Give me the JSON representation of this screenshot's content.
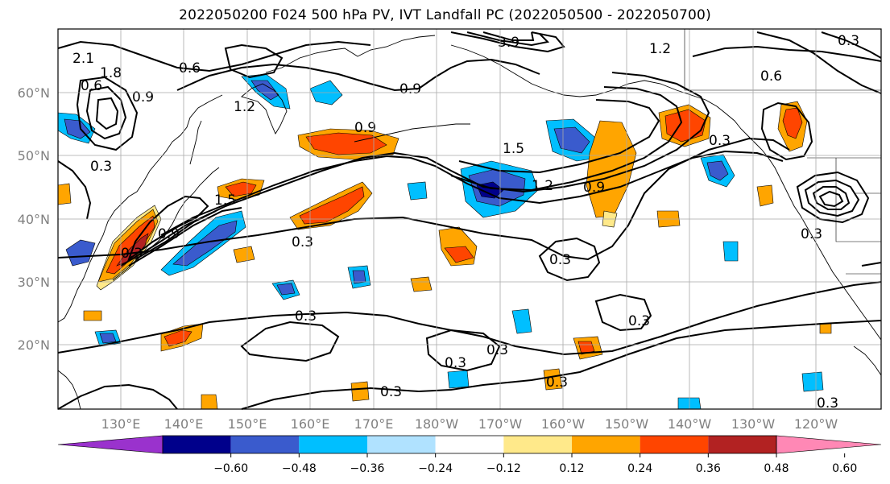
{
  "title": "2022050200 F024 500 hPa PV, IVT Landfall PC (2022050500 - 2022050700)",
  "axes": {
    "lat_labels": [
      "60°N",
      "50°N",
      "40°N",
      "30°N",
      "20°N"
    ],
    "lon_labels": [
      "130°E",
      "140°E",
      "150°E",
      "160°E",
      "170°E",
      "180°W",
      "170°W",
      "160°W",
      "150°W",
      "140°W",
      "130°W",
      "120°W"
    ],
    "tick_color": "#808080",
    "grid": true
  },
  "colorbar": {
    "ticks": [
      "−0.60",
      "−0.48",
      "−0.36",
      "−0.24",
      "−0.12",
      "0.12",
      "0.24",
      "0.36",
      "0.48",
      "0.60"
    ],
    "colors": [
      "#9a32cd",
      "#00008b",
      "#3a5bcd",
      "#00bfff",
      "#b0e2ff",
      "#ffffff",
      "#ffe98a",
      "#ffa500",
      "#ff4500",
      "#b22222",
      "#ff88b5"
    ]
  },
  "contour_labels": [
    "0.6",
    "0.9",
    "1.2",
    "1.5",
    "0.3",
    "0.9",
    "1.5",
    "1.2",
    "0.9",
    "0.3",
    "0.3",
    "0.3",
    "0.3",
    "0.3",
    "0.3",
    "0.3",
    "0.6",
    "0.3",
    "0.9",
    "1.2",
    "0.3",
    "0.6",
    "0.3",
    "1.8",
    "2.1",
    "0.3",
    "0.3",
    "0.3",
    "0.9",
    "3.9"
  ]
}
